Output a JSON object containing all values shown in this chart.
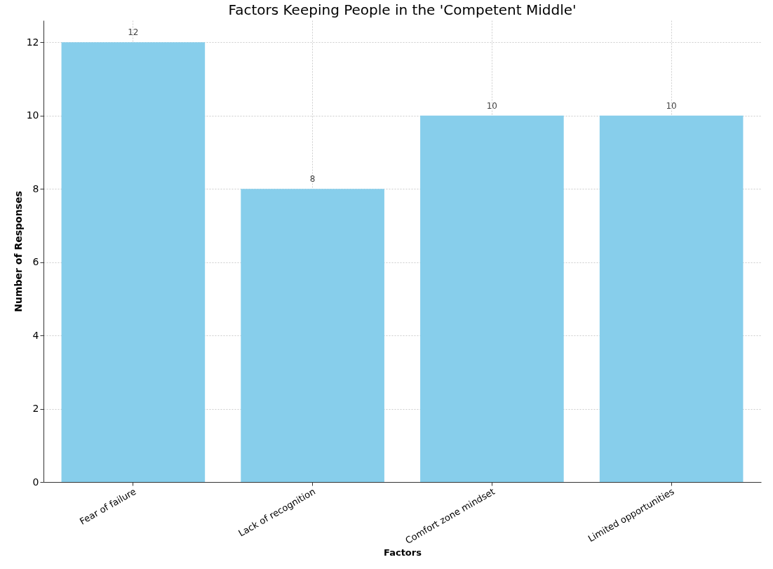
{
  "chart_data": {
    "type": "bar",
    "title": "Factors Keeping People in the 'Competent Middle'",
    "xlabel": "Factors",
    "ylabel": "Number of Responses",
    "categories": [
      "Fear of failure",
      "Lack of recognition",
      "Comfort zone mindset",
      "Limited opportunities"
    ],
    "values": [
      12,
      8,
      10,
      10
    ],
    "color": "#87ceeb",
    "ylim": [
      0,
      12.6
    ],
    "yticks": [
      0,
      2,
      4,
      6,
      8,
      10,
      12
    ],
    "grid": true,
    "data_labels": true
  }
}
